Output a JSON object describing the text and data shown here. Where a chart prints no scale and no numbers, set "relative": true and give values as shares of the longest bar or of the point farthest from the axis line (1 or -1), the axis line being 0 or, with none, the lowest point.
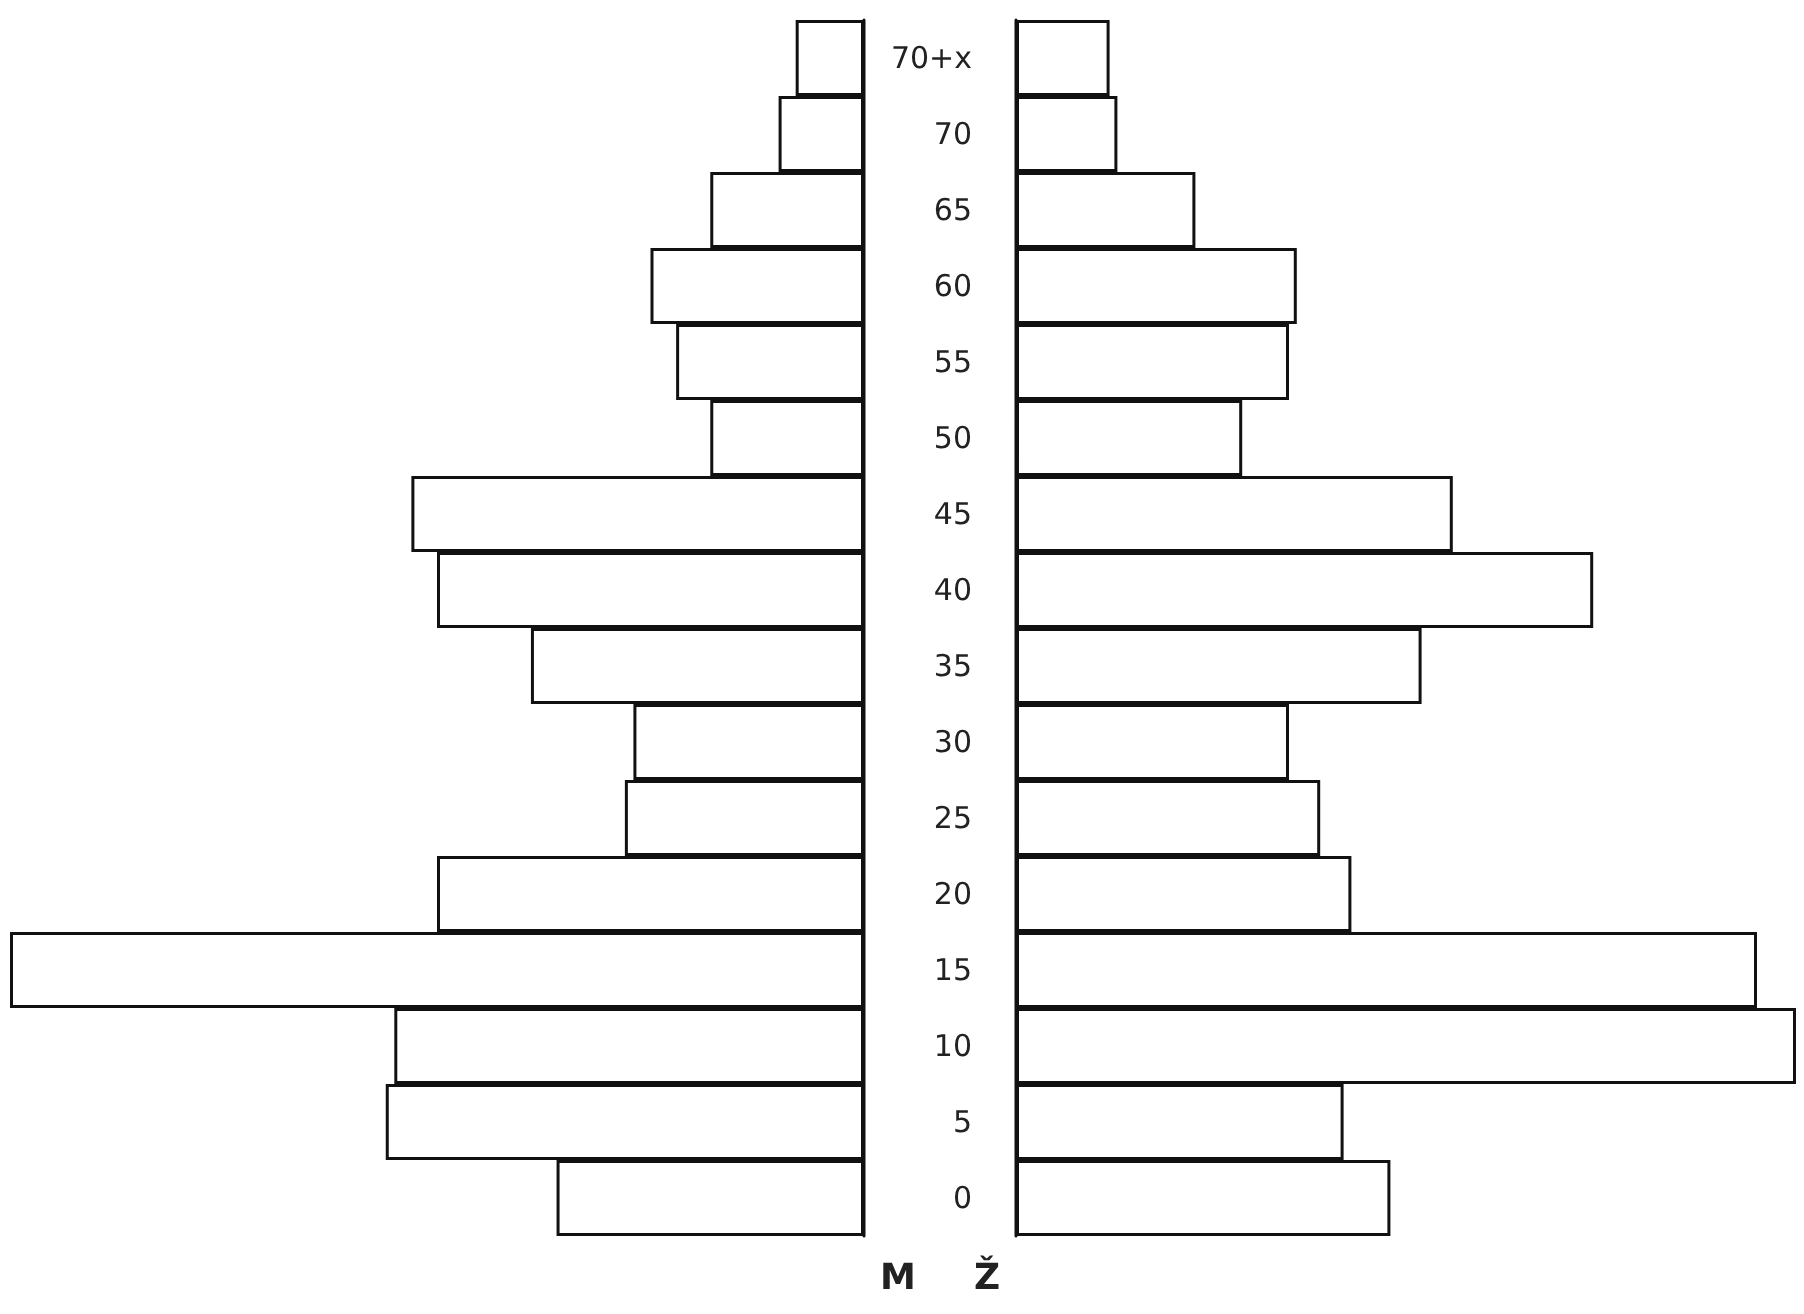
{
  "chart_data": [
    {
      "type": "bar",
      "orientation": "horizontal",
      "relative": true,
      "xlabel": "M",
      "color": "#ffffff",
      "categories": [
        null,
        null,
        null,
        null,
        null,
        null,
        null,
        null,
        null,
        null,
        null,
        null,
        null,
        null,
        null,
        null
      ],
      "values": [
        0.08,
        0.1,
        0.18,
        0.25,
        0.22,
        0.18,
        0.53,
        0.5,
        0.39,
        0.27,
        0.28,
        0.5,
        1,
        0.55,
        0.56,
        0.36
      ]
    },
    {
      "type": "bar",
      "orientation": "horizontal",
      "relative": true,
      "xlabel": "Ž",
      "color": "#ffffff",
      "categories": [
        "70+x",
        "70",
        "65",
        "60",
        "55",
        "50",
        "45",
        "40",
        "35",
        "30",
        "25",
        "20",
        "15",
        "10",
        "5",
        "0"
      ],
      "values": [
        0.12,
        0.13,
        0.23,
        0.36,
        0.35,
        0.29,
        0.56,
        0.74,
        0.52,
        0.35,
        0.39,
        0.43,
        0.95,
        1,
        0.42,
        0.48
      ]
    }
  ]
}
